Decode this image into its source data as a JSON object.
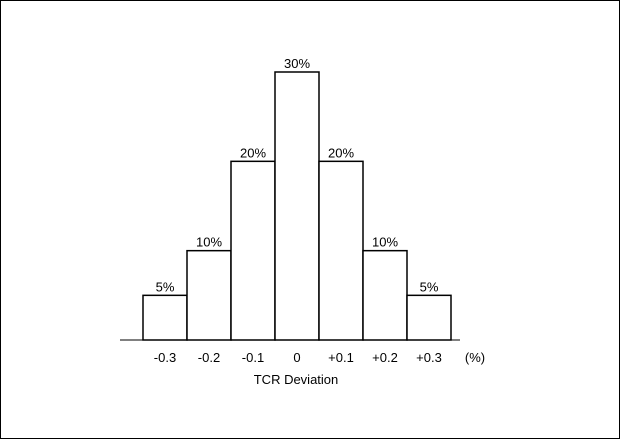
{
  "chart_data": {
    "type": "bar",
    "categories": [
      "-0.3",
      "-0.2",
      "-0.1",
      "0",
      "+0.1",
      "+0.2",
      "+0.3"
    ],
    "values": [
      5,
      10,
      20,
      30,
      20,
      10,
      5
    ],
    "data_labels": [
      "5%",
      "10%",
      "20%",
      "30%",
      "20%",
      "10%",
      "5%"
    ],
    "unit_label": "(%)",
    "title": "",
    "xlabel": "TCR Deviation",
    "ylabel": "",
    "ylim": [
      0,
      30
    ],
    "grid": false,
    "legend": "none",
    "colors": {
      "bar_fill": "#ffffff",
      "bar_stroke": "#000000",
      "text": "#000000"
    }
  }
}
